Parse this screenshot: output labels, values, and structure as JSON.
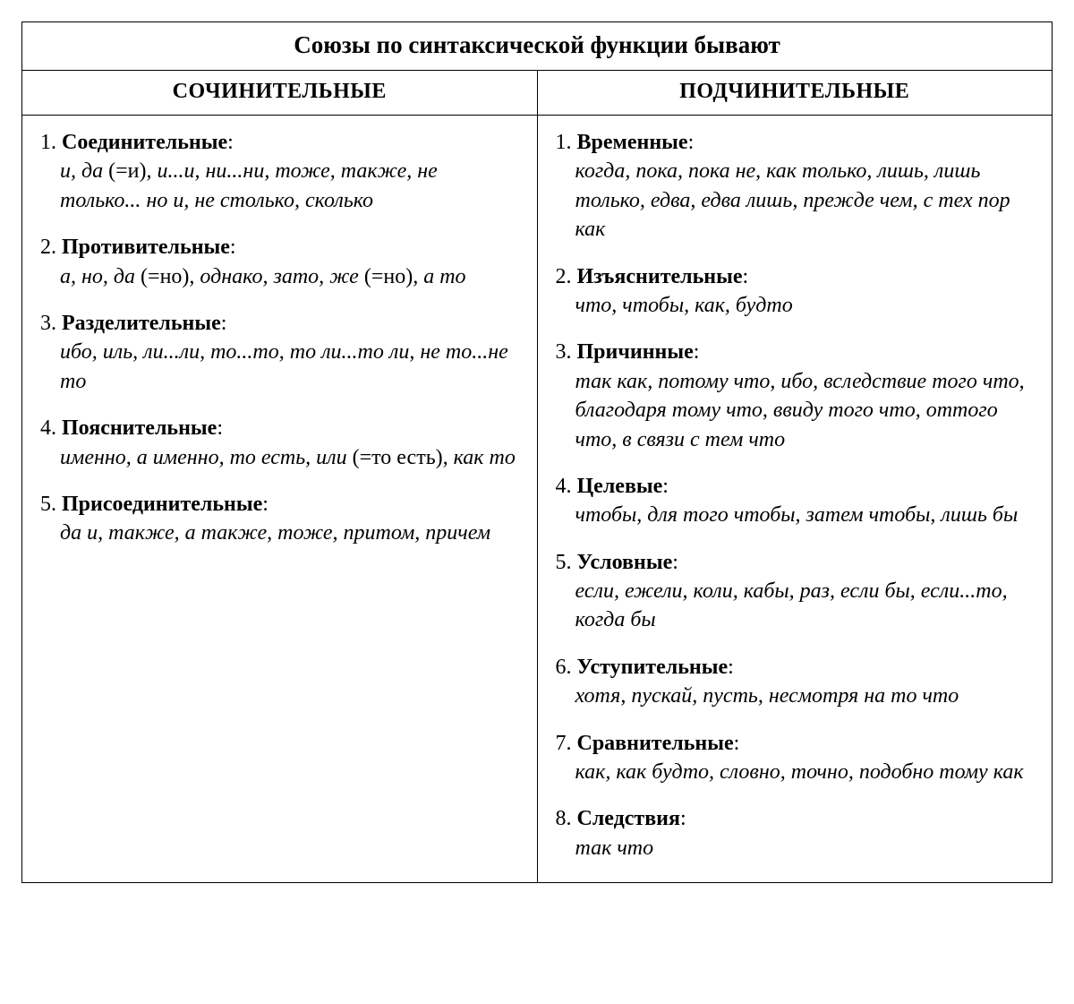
{
  "title": "Союзы по синтаксической функции бывают",
  "columns": {
    "left": {
      "header": "СОЧИНИТЕЛЬНЫЕ",
      "groups": [
        {
          "num": "1.",
          "name": "Соединительные",
          "segments": [
            {
              "t": "и, да ",
              "i": true
            },
            {
              "t": "(=и)",
              "i": false
            },
            {
              "t": ", и...и, ни...ни, тоже, также, не только... но и, не столько, сколько",
              "i": true
            }
          ]
        },
        {
          "num": "2.",
          "name": "Противительные",
          "segments": [
            {
              "t": "а, но, да ",
              "i": true
            },
            {
              "t": "(=но)",
              "i": false
            },
            {
              "t": ", однако, зато, же ",
              "i": true
            },
            {
              "t": "(=но)",
              "i": false
            },
            {
              "t": ", а то",
              "i": true
            }
          ]
        },
        {
          "num": "3.",
          "name": "Разделительные",
          "segments": [
            {
              "t": "ибо, иль, ли...ли, то...то, то ли...то ли, не то...не то",
              "i": true
            }
          ]
        },
        {
          "num": "4.",
          "name": "Пояснительные",
          "segments": [
            {
              "t": "именно, а именно, то есть, или ",
              "i": true
            },
            {
              "t": "(=то есть)",
              "i": false
            },
            {
              "t": ", как то",
              "i": true
            }
          ]
        },
        {
          "num": "5.",
          "name": "Присоединительные",
          "segments": [
            {
              "t": "да и, также, а также, тоже, притом, причем",
              "i": true
            }
          ]
        }
      ]
    },
    "right": {
      "header": "ПОДЧИНИТЕЛЬНЫЕ",
      "groups": [
        {
          "num": "1.",
          "name": "Временные",
          "segments": [
            {
              "t": "когда, пока, пока не, как только, лишь, лишь только, едва, едва лишь, прежде чем, с тех пор как",
              "i": true
            }
          ]
        },
        {
          "num": "2.",
          "name": "Изъяснительные",
          "segments": [
            {
              "t": "что, чтобы, как, будто",
              "i": true
            }
          ]
        },
        {
          "num": "3.",
          "name": "Причинные",
          "segments": [
            {
              "t": "так как, потому что, ибо, вследствие того что, благодаря тому что, ввиду того что, оттого что, в связи с тем что",
              "i": true
            }
          ]
        },
        {
          "num": "4.",
          "name": "Целевые",
          "segments": [
            {
              "t": "чтобы, для того чтобы, затем чтобы, лишь бы",
              "i": true
            }
          ]
        },
        {
          "num": "5.",
          "name": "Условные",
          "segments": [
            {
              "t": "если, ежели, коли, кабы, раз, если бы, если...то, когда бы",
              "i": true
            }
          ]
        },
        {
          "num": "6.",
          "name": "Уступительные",
          "segments": [
            {
              "t": "хотя, пускай, пусть, несмотря на то что",
              "i": true
            }
          ]
        },
        {
          "num": "7.",
          "name": "Сравнительные",
          "segments": [
            {
              "t": "как, как будто, словно, точно, подобно тому как",
              "i": true
            }
          ]
        },
        {
          "num": "8.",
          "name": "Следствия",
          "segments": [
            {
              "t": "так что",
              "i": true
            }
          ]
        }
      ]
    }
  }
}
